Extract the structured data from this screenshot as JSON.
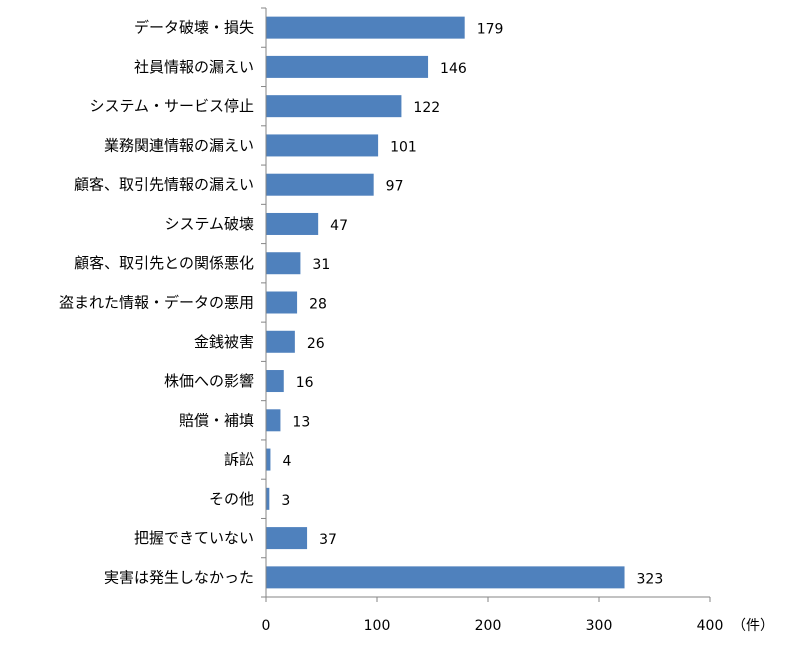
{
  "chart_data": {
    "type": "bar",
    "orientation": "horizontal",
    "title": "",
    "xlabel": "",
    "ylabel": "",
    "unit_label": "（件）",
    "categories": [
      "データ破壊・損失",
      "社員情報の漏えい",
      "システム・サービス停止",
      "業務関連情報の漏えい",
      "顧客、取引先情報の漏えい",
      "システム破壊",
      "顧客、取引先との関係悪化",
      "盗まれた情報・データの悪用",
      "金銭被害",
      "株価への影響",
      "賠償・補填",
      "訴訟",
      "その他",
      "把握できていない",
      "実害は発生しなかった"
    ],
    "values": [
      179,
      146,
      122,
      101,
      97,
      47,
      31,
      28,
      26,
      16,
      13,
      4,
      3,
      37,
      323
    ],
    "xlim": [
      0,
      400
    ],
    "xticks": [
      0,
      100,
      200,
      300,
      400
    ],
    "grid": false,
    "legend": "none",
    "bar_color": "#4F81BD"
  }
}
